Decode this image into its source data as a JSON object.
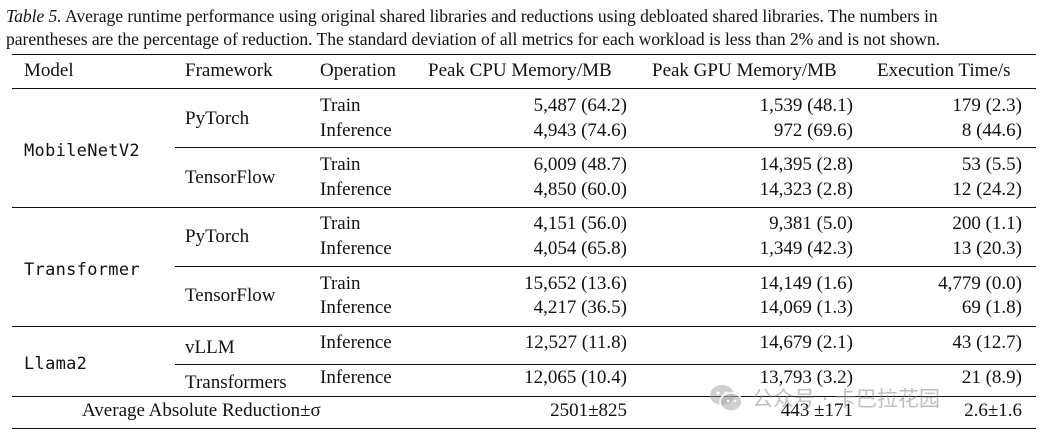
{
  "caption": {
    "label": "Table 5.",
    "line1": "Average runtime performance using original shared libraries and reductions using debloated shared libraries. The numbers in",
    "line2": "parentheses are the percentage of reduction. The standard deviation of all metrics for each workload is less than 2% and is not shown."
  },
  "headers": {
    "model": "Model",
    "framework": "Framework",
    "operation": "Operation",
    "cpu": "Peak CPU Memory/MB",
    "gpu": "Peak GPU Memory/MB",
    "time": "Execution Time/s"
  },
  "groups": [
    {
      "model": "MobileNetV2",
      "frameworks": [
        {
          "name": "PyTorch",
          "rows": [
            {
              "op": "Train",
              "cpu": "5,487 (64.2)",
              "gpu": "1,539 (48.1)",
              "time": "179 (2.3)"
            },
            {
              "op": "Inference",
              "cpu": "4,943 (74.6)",
              "gpu": "972 (69.6)",
              "time": "8 (44.6)"
            }
          ]
        },
        {
          "name": "TensorFlow",
          "rows": [
            {
              "op": "Train",
              "cpu": "6,009 (48.7)",
              "gpu": "14,395 (2.8)",
              "time": "53 (5.5)"
            },
            {
              "op": "Inference",
              "cpu": "4,850 (60.0)",
              "gpu": "14,323 (2.8)",
              "time": "12 (24.2)"
            }
          ]
        }
      ]
    },
    {
      "model": "Transformer",
      "frameworks": [
        {
          "name": "PyTorch",
          "rows": [
            {
              "op": "Train",
              "cpu": "4,151 (56.0)",
              "gpu": "9,381 (5.0)",
              "time": "200 (1.1)"
            },
            {
              "op": "Inference",
              "cpu": "4,054 (65.8)",
              "gpu": "1,349 (42.3)",
              "time": "13 (20.3)"
            }
          ]
        },
        {
          "name": "TensorFlow",
          "rows": [
            {
              "op": "Train",
              "cpu": "15,652 (13.6)",
              "gpu": "14,149 (1.6)",
              "time": "4,779 (0.0)"
            },
            {
              "op": "Inference",
              "cpu": "4,217 (36.5)",
              "gpu": "14,069 (1.3)",
              "time": "69 (1.8)"
            }
          ]
        }
      ]
    },
    {
      "model": "Llama2",
      "frameworks": [
        {
          "name": "vLLM",
          "rows": [
            {
              "op": "Inference",
              "cpu": "12,527 (11.8)",
              "gpu": "14,679 (2.1)",
              "time": "43 (12.7)"
            }
          ]
        },
        {
          "name": "Transformers",
          "rows": [
            {
              "op": "Inference",
              "cpu": "12,065 (10.4)",
              "gpu": "13,793 (3.2)",
              "time": "21 (8.9)"
            }
          ]
        }
      ]
    }
  ],
  "summary": {
    "label": "Average Absolute Reduction±σ",
    "cpu": "2501±825",
    "gpu": "443 ±171",
    "time": "2.6±1.6"
  },
  "watermark": {
    "icon": "wechat-icon",
    "text": "公众号 · 卡巴拉花园"
  }
}
